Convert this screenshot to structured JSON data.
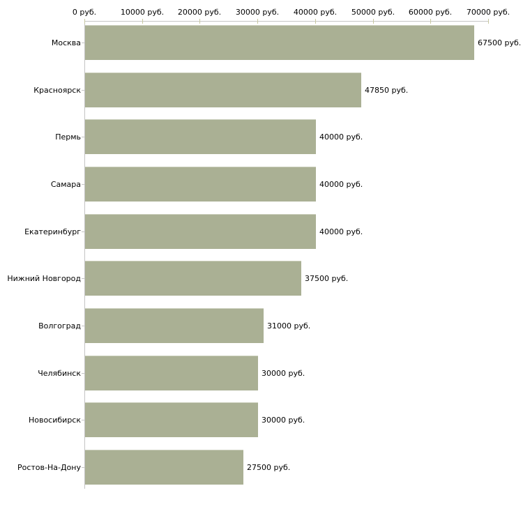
{
  "chart_data": {
    "type": "bar",
    "orientation": "horizontal",
    "title": "",
    "xlabel": "",
    "ylabel": "",
    "unit": "руб.",
    "xlim": [
      0,
      70000
    ],
    "x_tick_step": 10000,
    "x_tick_labels": [
      "0 руб.",
      "10000 руб.",
      "20000 руб.",
      "30000 руб.",
      "40000 руб.",
      "50000 руб.",
      "60000 руб.",
      "70000 руб."
    ],
    "categories": [
      "Москва",
      "Красноярск",
      "Пермь",
      "Самара",
      "Екатеринбург",
      "Нижний Новгород",
      "Волгоград",
      "Челябинск",
      "Новосибирск",
      "Ростов-На-Дону"
    ],
    "values": [
      67500,
      47850,
      40000,
      40000,
      40000,
      37500,
      31000,
      30000,
      30000,
      27500
    ],
    "value_labels": [
      "67500 руб.",
      "47850 руб.",
      "40000 руб.",
      "40000 руб.",
      "40000 руб.",
      "37500 руб.",
      "31000 руб.",
      "30000 руб.",
      "30000 руб.",
      "27500 руб."
    ],
    "grid": false,
    "legend": false,
    "layout_hints": {
      "value_labels_position": "right-of-bar",
      "category_labels_position": "left-of-axis",
      "x_axis_position": "top"
    },
    "colors": {
      "bar_fill": "#aab094",
      "bar_edge": "#c9cdb9",
      "axis_line": "#c4c4c4",
      "x_tick": "#c8c8a0",
      "y_tick": "#c4c4c4",
      "text": "#000000",
      "background": "#ffffff"
    }
  }
}
